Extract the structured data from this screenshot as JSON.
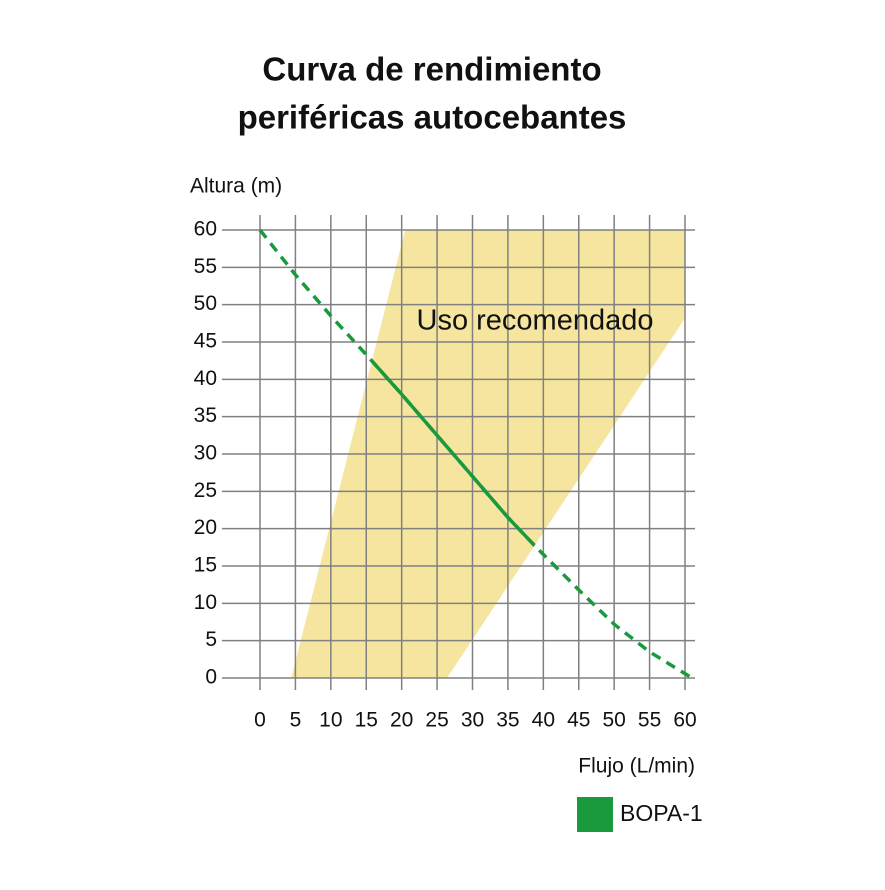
{
  "chart_data": {
    "type": "line",
    "title": [
      "Curva de rendimiento",
      "periféricas autocebantes"
    ],
    "y_label": "Altura (m)",
    "x_label": "Flujo (L/min)",
    "xlim": [
      0,
      60
    ],
    "ylim": [
      0,
      60
    ],
    "xticks": [
      0,
      5,
      10,
      15,
      20,
      25,
      30,
      35,
      40,
      45,
      50,
      55,
      60
    ],
    "yticks": [
      0,
      5,
      10,
      15,
      20,
      25,
      30,
      35,
      40,
      45,
      50,
      55,
      60
    ],
    "grid": true,
    "grid_color": "#808080",
    "region": {
      "label": "Uso recomendado",
      "color": "#f5e59f",
      "x": [
        4.4,
        20.5,
        60,
        60,
        26.4
      ],
      "y": [
        0,
        60,
        60,
        48.2,
        0
      ]
    },
    "series": [
      {
        "name": "BOPA-1",
        "color": "#1a9a3c",
        "x": [
          0,
          5,
          10,
          15,
          20,
          25,
          30,
          35,
          39,
          45,
          50,
          55,
          61
        ],
        "values": [
          60,
          54,
          48.5,
          43.3,
          38,
          32.5,
          27,
          21.5,
          17.5,
          11.8,
          7.2,
          3.5,
          0
        ]
      }
    ],
    "legend": "bottom-right"
  }
}
